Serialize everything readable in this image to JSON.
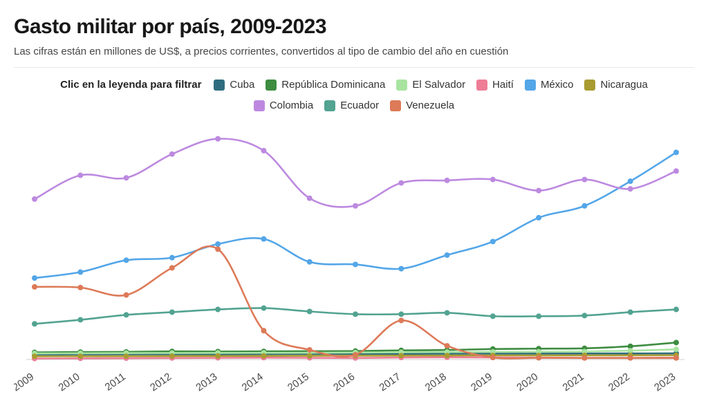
{
  "header": {
    "title": "Gasto militar por país, 2009-2023",
    "subtitle": "Las cifras están en millones de US$, a precios corrientes, convertidos al tipo de cambio del año en cuestión"
  },
  "legend": {
    "hint": "Clic en la leyenda para filtrar",
    "row_break_after": 6
  },
  "chart_data": {
    "type": "line",
    "title": "Gasto militar por país, 2009-2023",
    "unit": "millones de US$, a precios corrientes",
    "x": [
      2009,
      2010,
      2011,
      2012,
      2013,
      2014,
      2015,
      2016,
      2017,
      2018,
      2019,
      2020,
      2021,
      2022,
      2023
    ],
    "ylim": [
      0,
      13600
    ],
    "grid": false,
    "legend_position": "top",
    "axis_color": "#cfcfcf",
    "tick_color": "#4a4a4a",
    "series": [
      {
        "name": "Cuba",
        "color": "#2f6d7e",
        "values": [
          300,
          305,
          310,
          315,
          320,
          325,
          330,
          335,
          340,
          345,
          350,
          350,
          355,
          360,
          365
        ]
      },
      {
        "name": "República Dominicana",
        "color": "#3d8c40",
        "values": [
          420,
          440,
          450,
          480,
          470,
          480,
          490,
          500,
          540,
          560,
          620,
          640,
          660,
          780,
          1000
        ]
      },
      {
        "name": "El Salvador",
        "color": "#a8e4a0",
        "values": [
          360,
          370,
          380,
          385,
          390,
          395,
          400,
          410,
          430,
          440,
          450,
          460,
          470,
          520,
          600
        ]
      },
      {
        "name": "Haití",
        "color": "#ee7d96",
        "values": [
          60,
          70,
          80,
          90,
          100,
          110,
          100,
          90,
          120,
          130,
          120,
          110,
          100,
          100,
          110
        ]
      },
      {
        "name": "México",
        "color": "#53a6e8",
        "values": [
          4800,
          5150,
          5850,
          6000,
          6800,
          7100,
          5750,
          5600,
          5350,
          6150,
          6950,
          8350,
          9050,
          10500,
          12200
        ]
      },
      {
        "name": "Nicaragua",
        "color": "#a89b31",
        "values": [
          190,
          195,
          200,
          205,
          210,
          215,
          220,
          225,
          230,
          235,
          240,
          240,
          245,
          250,
          255
        ]
      },
      {
        "name": "Colombia",
        "color": "#bd89e0",
        "values": [
          9450,
          10850,
          10700,
          12100,
          13000,
          12300,
          9500,
          9050,
          10400,
          10550,
          10600,
          9950,
          10600,
          10050,
          11100
        ]
      },
      {
        "name": "Ecuador",
        "color": "#52a391",
        "values": [
          2100,
          2340,
          2630,
          2790,
          2950,
          3030,
          2830,
          2670,
          2670,
          2750,
          2550,
          2550,
          2590,
          2790,
          2950
        ]
      },
      {
        "name": "Venezuela",
        "color": "#dd7a58",
        "values": [
          4280,
          4240,
          3800,
          5400,
          6500,
          1700,
          570,
          280,
          2300,
          810,
          120,
          100,
          90,
          90,
          90
        ]
      }
    ]
  }
}
